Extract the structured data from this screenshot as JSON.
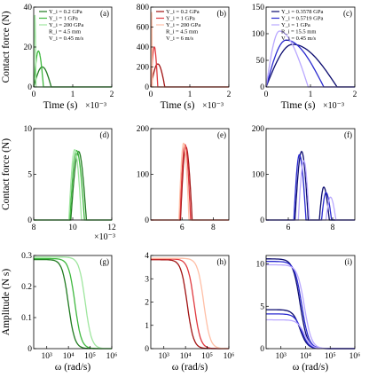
{
  "colors": {
    "green_dark": "#1f7a1f",
    "green_mid": "#3fb83f",
    "green_light": "#9fe69f",
    "red_dark": "#a11212",
    "red_mid": "#e0393f",
    "red_light": "#ffbfa6",
    "blue_dark": "#0a0a6e",
    "blue_mid": "#2a2ad0",
    "blue_light": "#b9a8ff"
  },
  "chart_data": [
    {
      "panel": "(a)",
      "type": "line",
      "ylabel": "Contact force (N)",
      "xlabel": "Time (s)",
      "x_multiplier": "×10⁻³",
      "xlim": [
        0,
        2
      ],
      "ylim": [
        0,
        40
      ],
      "xticks": [
        0,
        1,
        2
      ],
      "yticks": [
        0,
        20,
        40
      ],
      "legend": [
        "Y_i = 0.2 GPa",
        "Y_i = 1 GPa",
        "Y_i = 200 GPa",
        "R_i = 4.5 mm",
        "V_i = 0.45 m/s"
      ],
      "series": [
        {
          "name": "Y_i = 0.2 GPa",
          "peak": [
            0.22,
            10
          ],
          "start": 0,
          "end": 0.45
        },
        {
          "name": "Y_i = 1 GPa",
          "peak": [
            0.12,
            18
          ],
          "start": 0,
          "end": 0.25
        },
        {
          "name": "Y_i = 200 GPa",
          "peak": [
            0.03,
            36
          ],
          "start": 0,
          "end": 0.06
        }
      ]
    },
    {
      "panel": "(b)",
      "type": "line",
      "xlabel": "Time (s)",
      "x_multiplier": "×10⁻³",
      "xlim": [
        0,
        2
      ],
      "ylim": [
        0,
        800
      ],
      "xticks": [
        0,
        1,
        2
      ],
      "yticks": [
        0,
        200,
        400,
        600,
        800
      ],
      "legend": [
        "Y_i = 0.2 GPa",
        "Y_i = 1 GPa",
        "Y_i = 200 GPa",
        "R_i = 4.5 mm",
        "V_i = 6 m/s"
      ],
      "series": [
        {
          "name": "Y_i = 0.2 GPa",
          "peak": [
            0.18,
            230
          ],
          "start": 0,
          "end": 0.36
        },
        {
          "name": "Y_i = 1 GPa",
          "peak": [
            0.09,
            400
          ],
          "start": 0,
          "end": 0.18
        },
        {
          "name": "Y_i = 200 GPa",
          "peak": [
            0.02,
            750
          ],
          "start": 0,
          "end": 0.04
        }
      ]
    },
    {
      "panel": "(c)",
      "type": "line",
      "xlabel": "Time (s)",
      "x_multiplier": "×10⁻³",
      "xlim": [
        0,
        2
      ],
      "ylim": [
        0,
        150
      ],
      "xticks": [
        0,
        1,
        2
      ],
      "yticks": [
        0,
        50,
        100,
        150
      ],
      "legend": [
        "Y_i = 0.3578 GPa",
        "Y_i = 0.5719 GPa",
        "Y_i = 1 GPa",
        "R_i = 15.5 mm",
        "V_i = 0.45 m/s"
      ],
      "series": [
        {
          "name": "Y_i = 0.3578 GPa",
          "peak": [
            0.6,
            80
          ],
          "start": 0,
          "end": 1.6
        },
        {
          "name": "Y_i = 0.5719 GPa",
          "peak": [
            0.45,
            88
          ],
          "start": 0,
          "end": 1.3
        },
        {
          "name": "Y_i = 1 GPa",
          "peak": [
            0.3,
            105
          ],
          "start": 0,
          "end": 0.95
        }
      ]
    },
    {
      "panel": "(d)",
      "type": "line",
      "ylabel": "Contact force (N)",
      "x_multiplier": "×10⁻³",
      "xlim": [
        8,
        12
      ],
      "ylim": [
        0,
        10
      ],
      "xticks": [
        8,
        10,
        12
      ],
      "yticks": [
        0,
        5,
        10
      ],
      "series": [
        {
          "peak": [
            10.3,
            7.5
          ],
          "start": 9.9,
          "end": 10.7
        },
        {
          "peak": [
            10.2,
            7.6
          ],
          "start": 9.85,
          "end": 10.6
        },
        {
          "peak": [
            10.1,
            7.7
          ],
          "start": 9.8,
          "end": 10.45
        }
      ]
    },
    {
      "panel": "(e)",
      "type": "line",
      "xlim": [
        4,
        9
      ],
      "ylim": [
        0,
        200
      ],
      "xticks": [
        6,
        8
      ],
      "yticks": [
        0,
        100,
        200
      ],
      "series": [
        {
          "peak": [
            6.25,
            160
          ],
          "start": 5.9,
          "end": 6.65
        },
        {
          "peak": [
            6.2,
            165
          ],
          "start": 5.85,
          "end": 6.55
        },
        {
          "peak": [
            6.1,
            168
          ],
          "start": 5.8,
          "end": 6.45
        }
      ]
    },
    {
      "panel": "(f)",
      "type": "line",
      "xlim": [
        5,
        9
      ],
      "ylim": [
        0,
        200
      ],
      "xticks": [
        6,
        8
      ],
      "yticks": [
        0,
        100,
        200
      ],
      "series": [
        {
          "peak": [
            6.6,
            150
          ],
          "start": 6.3,
          "end": 6.9,
          "peak2": [
            7.6,
            72
          ],
          "start2": 7.4,
          "end2": 7.85
        },
        {
          "peak": [
            6.5,
            143
          ],
          "start": 6.25,
          "end": 6.8,
          "peak2": [
            7.7,
            60
          ],
          "start2": 7.5,
          "end2": 7.95
        },
        {
          "peak": [
            6.7,
            130
          ],
          "start": 6.45,
          "end": 6.95,
          "peak2": [
            7.9,
            50
          ],
          "start2": 7.7,
          "end2": 8.15
        }
      ]
    },
    {
      "panel": "(g)",
      "type": "line",
      "ylabel": "Amplitude (N s)",
      "xlabel": "ω (rad/s)",
      "xscale": "log",
      "xlim": [
        250,
        1000000
      ],
      "ylim": [
        0,
        0.3
      ],
      "xticks": [
        "10³",
        "10⁴",
        "10⁵",
        "10⁶"
      ],
      "yticks": [
        0,
        0.1,
        0.2,
        0.3
      ],
      "series": [
        {
          "plateau": 0.287,
          "cutoff": 10000
        },
        {
          "plateau": 0.29,
          "cutoff": 20000
        },
        {
          "plateau": 0.295,
          "cutoff": 60000
        }
      ]
    },
    {
      "panel": "(h)",
      "type": "line",
      "xlabel": "ω (rad/s)",
      "xscale": "log",
      "xlim": [
        250,
        1000000
      ],
      "ylim": [
        0,
        4
      ],
      "xticks": [
        "10³",
        "10⁴",
        "10⁵",
        "10⁶"
      ],
      "yticks": [
        0,
        1,
        2,
        3,
        4
      ],
      "series": [
        {
          "plateau": 3.82,
          "cutoff": 12000
        },
        {
          "plateau": 3.85,
          "cutoff": 25000
        },
        {
          "plateau": 3.88,
          "cutoff": 70000
        }
      ]
    },
    {
      "panel": "(i)",
      "type": "line",
      "xlabel": "ω (rad/s)",
      "xscale": "log",
      "xlim": [
        250,
        1000000
      ],
      "ylim": [
        0,
        11
      ],
      "xticks": [
        "10³",
        "10⁴",
        "10⁵",
        "10⁶"
      ],
      "yticks": [
        0,
        5,
        10
      ],
      "series": [
        {
          "plateau": 10.6,
          "cutoff": 6000
        },
        {
          "plateau": 10.3,
          "cutoff": 7000
        },
        {
          "plateau": 9.9,
          "cutoff": 9000
        },
        {
          "plateau": 4.6,
          "cutoff": 6000
        },
        {
          "plateau": 4.1,
          "cutoff": 7000
        },
        {
          "plateau": 3.4,
          "cutoff": 9000
        }
      ]
    }
  ]
}
